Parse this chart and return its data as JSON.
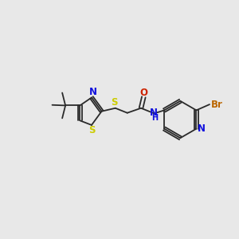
{
  "bg_color": "#e8e8e8",
  "bond_color": "#2a2a2a",
  "bond_width": 1.3,
  "atom_colors": {
    "N": "#1010dd",
    "S": "#cccc00",
    "O": "#cc2200",
    "Br": "#bb6600",
    "C": "#2a2a2a"
  },
  "font_size": 8.5,
  "font_size_h": 7.0,
  "figsize": [
    3.0,
    3.0
  ],
  "dpi": 100,
  "xlim": [
    0.5,
    9.5
  ],
  "ylim": [
    3.2,
    7.2
  ]
}
